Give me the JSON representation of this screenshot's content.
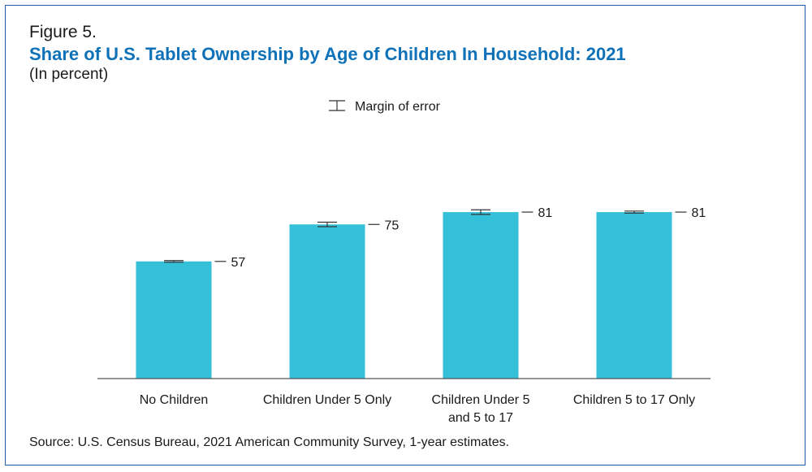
{
  "figure_label": "Figure 5.",
  "source": "Source: U.S. Census Bureau, 2021 American Community Survey, 1-year estimates.",
  "chart_data": {
    "type": "bar",
    "title": "Share of U.S. Tablet Ownership by Age of Children In Household: 2021",
    "subtitle": "(In percent)",
    "categories": [
      [
        "No Children"
      ],
      [
        "Children Under 5 Only"
      ],
      [
        "Children Under 5",
        "and 5 to 17"
      ],
      [
        "Children 5 to 17 Only"
      ]
    ],
    "values": [
      57,
      75,
      81,
      81
    ],
    "value_labels": [
      "57",
      "75",
      "81",
      "81"
    ],
    "margin_of_error": [
      0.4,
      1.1,
      1.1,
      0.5
    ],
    "ylim": [
      0,
      100
    ],
    "grid": false,
    "legend": {
      "label": "Margin of error",
      "placement": "top-center"
    },
    "colors": {
      "bar": "#33c0d8",
      "error_bar": "#333333",
      "axis": "#555555"
    }
  }
}
